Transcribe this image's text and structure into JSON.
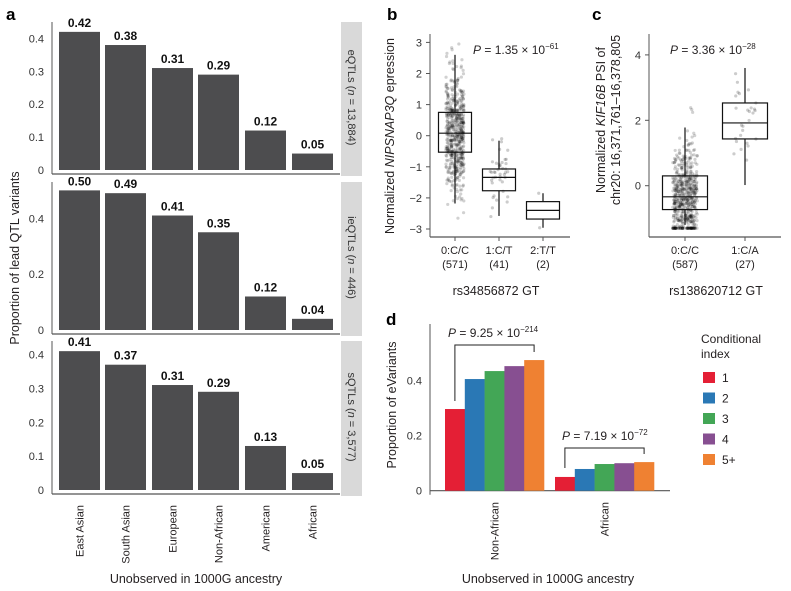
{
  "panels": {
    "a": "a",
    "b": "b",
    "c": "c",
    "d": "d"
  },
  "chart_data": [
    {
      "id": "a",
      "type": "bar",
      "title": "",
      "ylabel": "Proportion of lead QTL variants",
      "xlabel": "Unobserved in 1000G ancestry",
      "categories": [
        "East Asian",
        "South Asian",
        "European",
        "Non-African",
        "American",
        "African"
      ],
      "bar_color": "#4d4d4f",
      "facets": [
        {
          "strip_label_prefix": "eQTLs (",
          "strip_label_n": "n",
          "strip_label_suffix": " = 13,884)",
          "values": [
            0.42,
            0.38,
            0.31,
            0.29,
            0.12,
            0.05
          ],
          "data_labels": [
            "0.42",
            "0.38",
            "0.31",
            "0.29",
            "0.12",
            "0.05"
          ],
          "ylim": [
            0,
            0.45
          ],
          "yticks": [
            0,
            0.1,
            0.2,
            0.3,
            0.4
          ],
          "ytick_labels": [
            "0",
            "0.1",
            "0.2",
            "0.3",
            "0.4"
          ]
        },
        {
          "strip_label_prefix": "ieQTLs (",
          "strip_label_n": "n",
          "strip_label_suffix": " = 446)",
          "values": [
            0.5,
            0.49,
            0.41,
            0.35,
            0.12,
            0.04
          ],
          "data_labels": [
            "0.50",
            "0.49",
            "0.41",
            "0.35",
            "0.12",
            "0.04"
          ],
          "ylim": [
            0,
            0.53
          ],
          "yticks": [
            0,
            0.2,
            0.4
          ],
          "ytick_labels": [
            "0",
            "0.2",
            "0.4"
          ]
        },
        {
          "strip_label_prefix": "sQTLs (",
          "strip_label_n": "n",
          "strip_label_suffix": " = 3,577)",
          "values": [
            0.41,
            0.37,
            0.31,
            0.29,
            0.13,
            0.05
          ],
          "data_labels": [
            "0.41",
            "0.37",
            "0.31",
            "0.29",
            "0.13",
            "0.05"
          ],
          "ylim": [
            0,
            0.44
          ],
          "yticks": [
            0,
            0.1,
            0.2,
            0.3,
            0.4
          ],
          "ytick_labels": [
            "0",
            "0.1",
            "0.2",
            "0.3",
            "0.4"
          ]
        }
      ],
      "strip_color": "#d9d9d9"
    },
    {
      "id": "b",
      "type": "boxplot",
      "ylabel_prefix": "Normalized ",
      "ylabel_gene": "NIPSNAP3Q",
      "ylabel_suffix": " epression",
      "xlabel": "rs34856872 GT",
      "pvalue": {
        "p": "P",
        "eq": " = 1.35 × 10",
        "exp": "−61"
      },
      "ylim": [
        -3.2,
        3.3
      ],
      "yticks": [
        -3,
        -2,
        -1,
        0,
        1,
        2,
        3
      ],
      "ytick_labels": [
        "−3",
        "−2",
        "−1",
        "0",
        "1",
        "2",
        "3"
      ],
      "groups": [
        {
          "label": "0:C/C",
          "n": "(571)",
          "q1": -0.53,
          "median": 0.08,
          "q3": 0.75,
          "whisker_low": -2.18,
          "whisker_high": 2.6,
          "point_count": 571,
          "point_range": [
            -2.7,
            2.95
          ]
        },
        {
          "label": "1:C/T",
          "n": "(41)",
          "q1": -1.77,
          "median": -1.34,
          "q3": -1.07,
          "whisker_low": -2.58,
          "whisker_high": -0.16,
          "point_count": 41,
          "point_range": [
            -2.6,
            0.15
          ]
        },
        {
          "label": "2:T/T",
          "n": "(2)",
          "q1": -2.68,
          "median": -2.4,
          "q3": -2.12,
          "whisker_low": -2.96,
          "whisker_high": -1.85,
          "point_count": 2,
          "point_range": [
            -2.96,
            -1.85
          ]
        }
      ]
    },
    {
      "id": "c",
      "type": "boxplot",
      "ylabel_line1_prefix": "Normalized ",
      "ylabel_line1_gene": "KIF16B",
      "ylabel_line1_suffix": " PSI of",
      "ylabel_line2": "chr20: 16,371,761–16,378,805",
      "xlabel": "rs138620712 GT",
      "pvalue": {
        "p": "P",
        "eq": " = 3.36 × 10",
        "exp": "−28"
      },
      "ylim": [
        -1.55,
        4.6
      ],
      "yticks": [
        0,
        2,
        4
      ],
      "ytick_labels": [
        "0",
        "2",
        "4"
      ],
      "groups": [
        {
          "label": "0:C/C",
          "n": "(587)",
          "q1": -0.73,
          "median": -0.34,
          "q3": 0.3,
          "whisker_low": -1.2,
          "whisker_high": 1.78,
          "point_count": 587,
          "point_range": [
            -1.3,
            3.0
          ]
        },
        {
          "label": "1:C/A",
          "n": "(27)",
          "q1": 1.43,
          "median": 1.92,
          "q3": 2.53,
          "whisker_low": 0.02,
          "whisker_high": 3.6,
          "point_count": 27,
          "point_range": [
            -0.72,
            4.35
          ]
        }
      ]
    },
    {
      "id": "d",
      "type": "bar",
      "ylabel": "Proportion of eVariants",
      "xlabel": "Unobserved in 1000G ancestry",
      "categories": [
        "Non-African",
        "African"
      ],
      "ylim": [
        0,
        0.57
      ],
      "yticks": [
        0,
        0.2,
        0.4
      ],
      "ytick_labels": [
        "0",
        "0.2",
        "0.4"
      ],
      "legend_title_line1": "Conditional",
      "legend_title_line2": "index",
      "legend_position": "right",
      "series": [
        {
          "name": "1",
          "color": "#e41f35",
          "values": [
            0.297,
            0.05
          ]
        },
        {
          "name": "2",
          "color": "#2a78b5",
          "values": [
            0.406,
            0.079
          ]
        },
        {
          "name": "3",
          "color": "#43a656",
          "values": [
            0.435,
            0.097
          ]
        },
        {
          "name": "4",
          "color": "#874f91",
          "values": [
            0.453,
            0.1
          ]
        },
        {
          "name": "5+",
          "color": "#ef8132",
          "values": [
            0.475,
            0.104
          ]
        }
      ],
      "annotations": [
        {
          "p": "P",
          "eq": " = 9.25 × 10",
          "exp": "−214"
        },
        {
          "p": "P",
          "eq": " = 7.19 × 10",
          "exp": "−72"
        }
      ]
    }
  ]
}
